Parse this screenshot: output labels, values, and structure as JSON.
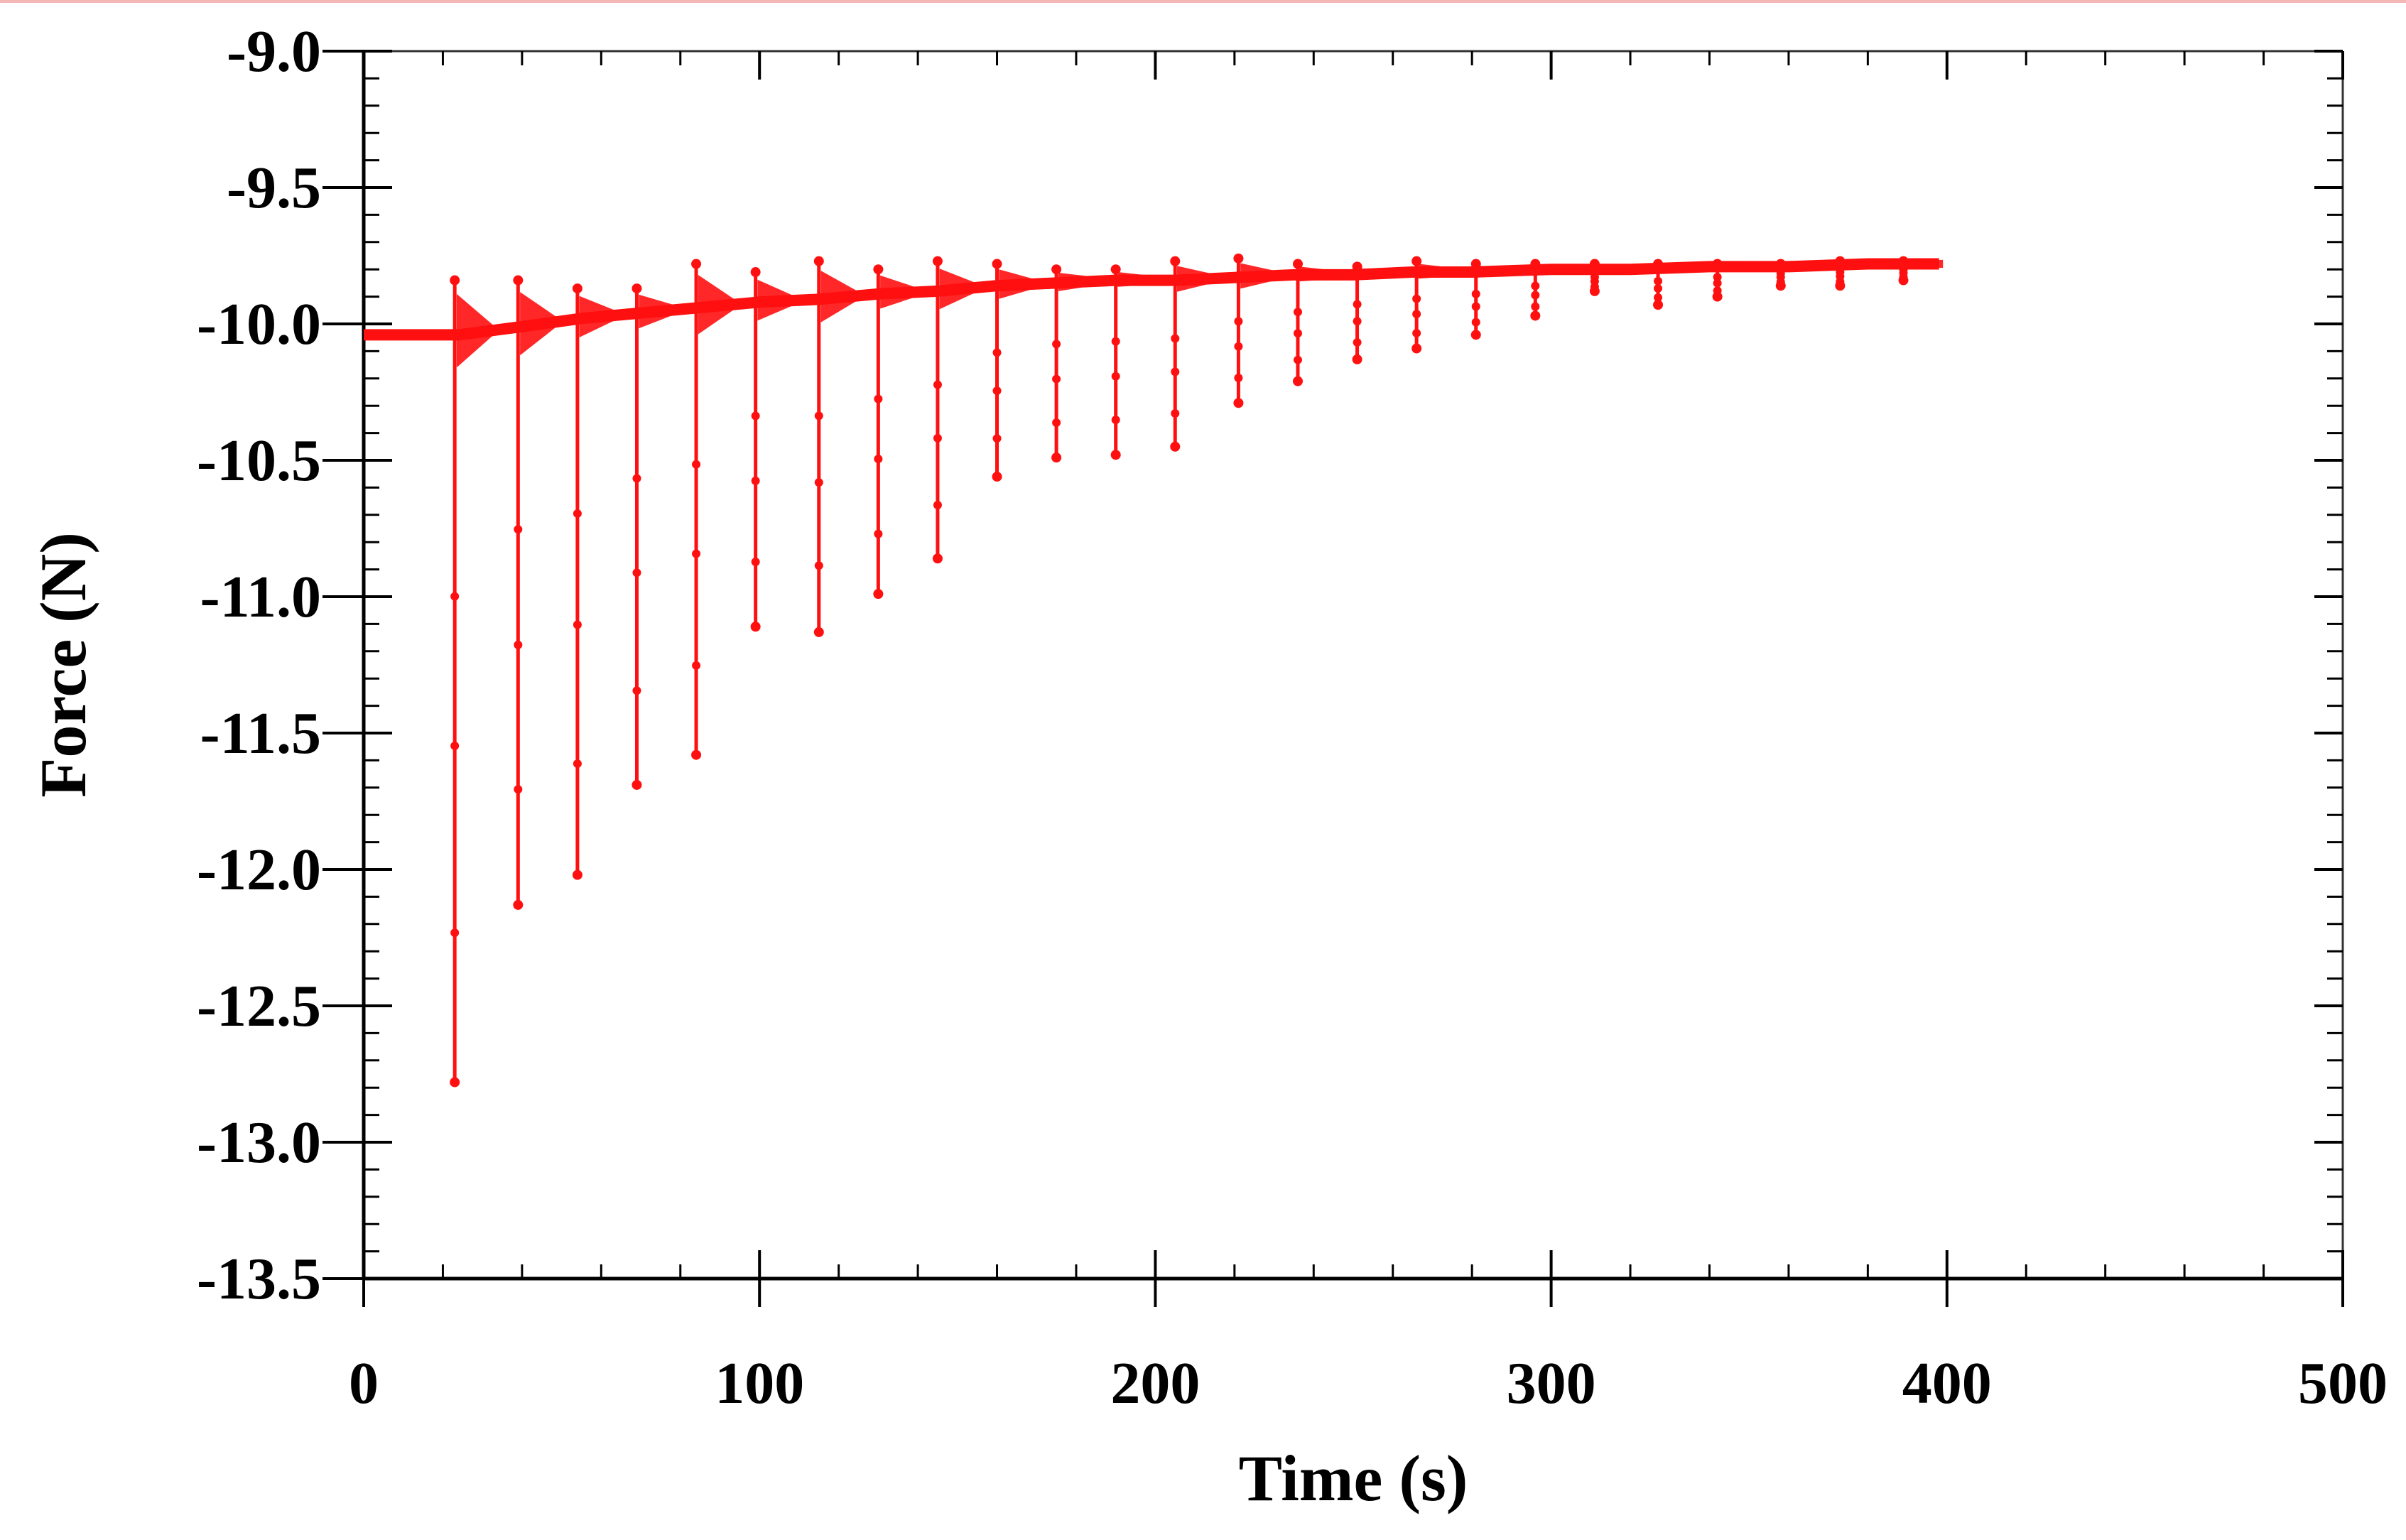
{
  "chart_data": {
    "type": "line",
    "title": "",
    "xlabel": "Time (s)",
    "ylabel": "Force (N)",
    "xlim": [
      0,
      500
    ],
    "ylim": [
      -13.5,
      -9.0
    ],
    "xticks": [
      0,
      100,
      200,
      300,
      400,
      500
    ],
    "yticks": [
      -9.0,
      -9.5,
      -10.0,
      -10.5,
      -11.0,
      -11.5,
      -12.0,
      -12.5,
      -13.0,
      -13.5
    ],
    "xtick_labels": [
      "0",
      "100",
      "200",
      "300",
      "400",
      "500"
    ],
    "ytick_labels": [
      "-9.0",
      "-9.5",
      "-10.0",
      "-10.5",
      "-11.0",
      "-11.5",
      "-12.0",
      "-12.5",
      "-13.0",
      "-13.5"
    ],
    "grid": false,
    "series": [
      {
        "name": "Force",
        "color": "#ff1010",
        "baseline": {
          "x": [
            0,
            10,
            24,
            40,
            55,
            70,
            85,
            100,
            115,
            130,
            145,
            160,
            175,
            190,
            205,
            220,
            235,
            250,
            265,
            280,
            300,
            320,
            340,
            360,
            380,
            398
          ],
          "y": [
            -10.04,
            -10.04,
            -10.04,
            -10.01,
            -9.98,
            -9.96,
            -9.94,
            -9.92,
            -9.91,
            -9.89,
            -9.88,
            -9.86,
            -9.85,
            -9.84,
            -9.84,
            -9.83,
            -9.82,
            -9.82,
            -9.81,
            -9.81,
            -9.8,
            -9.8,
            -9.79,
            -9.79,
            -9.78,
            -9.78
          ]
        },
        "spikes": [
          {
            "t": 23,
            "peak_high": -9.84,
            "trough": -12.78
          },
          {
            "t": 39,
            "peak_high": -9.84,
            "trough": -12.13
          },
          {
            "t": 54,
            "peak_high": -9.87,
            "trough": -12.02
          },
          {
            "t": 69,
            "peak_high": -9.87,
            "trough": -11.69
          },
          {
            "t": 84,
            "peak_high": -9.78,
            "trough": -11.58
          },
          {
            "t": 99,
            "peak_high": -9.81,
            "trough": -11.11
          },
          {
            "t": 115,
            "peak_high": -9.77,
            "trough": -11.13
          },
          {
            "t": 130,
            "peak_high": -9.8,
            "trough": -10.99
          },
          {
            "t": 145,
            "peak_high": -9.77,
            "trough": -10.86
          },
          {
            "t": 160,
            "peak_high": -9.78,
            "trough": -10.56
          },
          {
            "t": 175,
            "peak_high": -9.8,
            "trough": -10.49
          },
          {
            "t": 190,
            "peak_high": -9.8,
            "trough": -10.48
          },
          {
            "t": 205,
            "peak_high": -9.77,
            "trough": -10.45
          },
          {
            "t": 221,
            "peak_high": -9.76,
            "trough": -10.29
          },
          {
            "t": 236,
            "peak_high": -9.78,
            "trough": -10.21
          },
          {
            "t": 251,
            "peak_high": -9.79,
            "trough": -10.13
          },
          {
            "t": 266,
            "peak_high": -9.77,
            "trough": -10.09
          },
          {
            "t": 281,
            "peak_high": -9.78,
            "trough": -10.04
          },
          {
            "t": 296,
            "peak_high": -9.78,
            "trough": -9.97
          },
          {
            "t": 311,
            "peak_high": -9.78,
            "trough": -9.88
          },
          {
            "t": 327,
            "peak_high": -9.78,
            "trough": -9.93
          },
          {
            "t": 342,
            "peak_high": -9.78,
            "trough": -9.9
          },
          {
            "t": 358,
            "peak_high": -9.78,
            "trough": -9.86
          },
          {
            "t": 373,
            "peak_high": -9.77,
            "trough": -9.86
          },
          {
            "t": 389,
            "peak_high": -9.77,
            "trough": -9.84
          }
        ]
      }
    ]
  }
}
